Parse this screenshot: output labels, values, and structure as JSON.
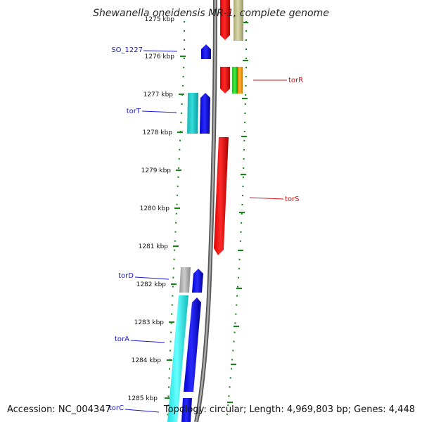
{
  "title": "Shewanella oneidensis MR-1, complete genome",
  "footer": {
    "accession": "Accession: NC_004347",
    "topology": "Topology: circular; Length: 4,969,803 bp; Genes: 4,448"
  },
  "ticks": [
    {
      "label": "1275 kbp"
    },
    {
      "label": "1276 kbp"
    },
    {
      "label": "1277 kbp"
    },
    {
      "label": "1278 kbp"
    },
    {
      "label": "1279 kbp"
    },
    {
      "label": "1280 kbp"
    },
    {
      "label": "1281 kbp"
    },
    {
      "label": "1282 kbp"
    },
    {
      "label": "1283 kbp"
    },
    {
      "label": "1284 kbp"
    },
    {
      "label": "1285 kbp"
    }
  ],
  "gene_labels": [
    {
      "name": "SO_1227",
      "strand": "forward"
    },
    {
      "name": "torT",
      "strand": "forward"
    },
    {
      "name": "torD",
      "strand": "forward"
    },
    {
      "name": "torA",
      "strand": "forward"
    },
    {
      "name": "torC",
      "strand": "forward"
    },
    {
      "name": "torR",
      "strand": "reverse"
    },
    {
      "name": "torS",
      "strand": "reverse"
    }
  ],
  "colors": {
    "forward_label": "#1a1acc",
    "reverse_label": "#cc1111",
    "backbone": "#888888",
    "ticks_left": "#118811",
    "ticks_right": "#118811",
    "gene_blue": "#0000ee",
    "gene_red": "#ee0000",
    "gene_cyan": "#22cccc",
    "gene_gray": "#aaaaaa",
    "gene_olive": "#bbbb88",
    "gene_green": "#22cc22",
    "gene_orange": "#ff9900"
  }
}
